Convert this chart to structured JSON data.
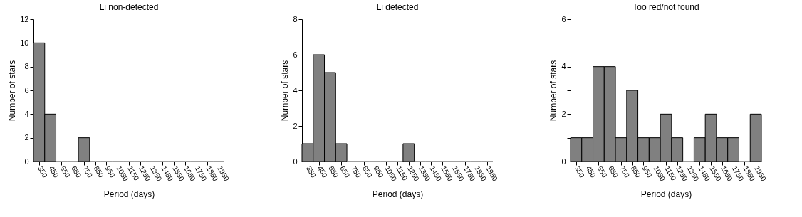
{
  "chart_data": [
    {
      "type": "histogram",
      "title": "Li non-detected",
      "xlabel": "Period (days)",
      "ylabel": "Number of stars",
      "bins": [
        300,
        400,
        500,
        600,
        700,
        800,
        900,
        1000,
        1100,
        1200,
        1300,
        1400,
        1500,
        1600,
        1700,
        1800,
        1900,
        2000
      ],
      "values": [
        10,
        4,
        0,
        0,
        2,
        0,
        0,
        0,
        0,
        0,
        0,
        0,
        0,
        0,
        0,
        0,
        0
      ],
      "color": "#808080",
      "xlim": [
        300,
        2000
      ],
      "xticks": [
        350,
        450,
        550,
        650,
        750,
        850,
        950,
        1050,
        1150,
        1250,
        1350,
        1450,
        1550,
        1650,
        1750,
        1850,
        1950
      ],
      "ylim": [
        0,
        12
      ],
      "yticks": [
        0,
        2,
        4,
        6,
        8,
        10,
        12
      ],
      "grid": false
    },
    {
      "type": "histogram",
      "title": "Li detected",
      "xlabel": "Period (days)",
      "ylabel": "Number of stars",
      "bins": [
        300,
        400,
        500,
        600,
        700,
        800,
        900,
        1000,
        1100,
        1200,
        1300,
        1400,
        1500,
        1600,
        1700,
        1800,
        1900,
        2000
      ],
      "values": [
        1,
        6,
        5,
        1,
        0,
        0,
        0,
        0,
        0,
        1,
        0,
        0,
        0,
        0,
        0,
        0,
        0
      ],
      "color": "#808080",
      "xlim": [
        300,
        2000
      ],
      "xticks": [
        350,
        450,
        550,
        650,
        750,
        850,
        950,
        1050,
        1150,
        1250,
        1350,
        1450,
        1550,
        1650,
        1750,
        1850,
        1950
      ],
      "ylim": [
        0,
        8
      ],
      "yticks": [
        0,
        2,
        4,
        6,
        8
      ],
      "grid": false
    },
    {
      "type": "histogram",
      "title": "Too red/not found",
      "xlabel": "Period (days)",
      "ylabel": "Number of stars",
      "bins": [
        300,
        400,
        500,
        600,
        700,
        800,
        900,
        1000,
        1100,
        1200,
        1300,
        1400,
        1500,
        1600,
        1700,
        1800,
        1900,
        2000
      ],
      "values": [
        1,
        1,
        4,
        4,
        1,
        3,
        1,
        1,
        2,
        1,
        0,
        1,
        2,
        1,
        1,
        0,
        2
      ],
      "color": "#808080",
      "xlim": [
        300,
        2000
      ],
      "xticks": [
        350,
        450,
        550,
        650,
        750,
        850,
        950,
        1050,
        1150,
        1250,
        1350,
        1450,
        1550,
        1650,
        1750,
        1850,
        1950
      ],
      "ylim": [
        0,
        6
      ],
      "yticks": [
        0,
        {
          "value": 1,
          "label": null
        },
        2,
        {
          "value": 3,
          "label": null
        },
        4,
        {
          "value": 5,
          "label": null
        },
        6
      ],
      "grid": false
    }
  ]
}
